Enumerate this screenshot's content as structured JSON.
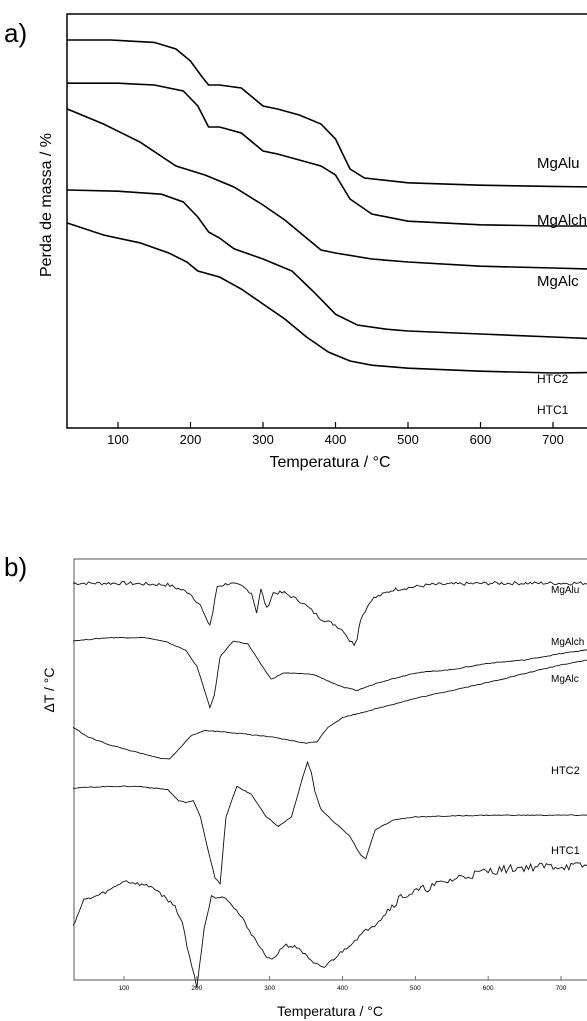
{
  "panel_a": {
    "label": "a)"
  },
  "panel_b": {
    "label": "b)"
  },
  "chart_data": [
    {
      "type": "line",
      "xlabel": "Temperatura / °C",
      "ylabel": "Perda de massa / %",
      "xlim": [
        30,
        760
      ],
      "xticks": [
        "100",
        "200",
        "300",
        "400",
        "500",
        "600",
        "700"
      ],
      "grid": false,
      "series": [
        {
          "name": "MgAlu",
          "x": [
            30,
            90,
            150,
            180,
            200,
            215,
            225,
            240,
            270,
            290,
            300,
            320,
            350,
            380,
            400,
            420,
            440,
            500,
            600,
            700,
            760
          ],
          "y": [
            95,
            95,
            94.6,
            93.5,
            91.5,
            89,
            87.5,
            87.5,
            87,
            85,
            84,
            83.5,
            82.5,
            81,
            78.5,
            73.5,
            72,
            71.2,
            70.8,
            70.6,
            70.5
          ]
        },
        {
          "name": "MgAlch",
          "x": [
            30,
            100,
            150,
            190,
            210,
            225,
            240,
            270,
            290,
            300,
            320,
            350,
            380,
            400,
            420,
            450,
            500,
            600,
            700,
            760
          ],
          "y": [
            87.8,
            87.8,
            87.5,
            86.5,
            84,
            80.5,
            80.5,
            79.5,
            77.5,
            76.5,
            76,
            75,
            74,
            72.5,
            68.5,
            66,
            64.8,
            64.2,
            64,
            64
          ]
        },
        {
          "name": "MgAlc",
          "x": [
            30,
            80,
            130,
            180,
            220,
            260,
            300,
            330,
            360,
            380,
            400,
            450,
            500,
            600,
            700,
            760
          ],
          "y": [
            83.5,
            81,
            78,
            74,
            72.5,
            70.5,
            67.5,
            65,
            62,
            60,
            59.5,
            58.5,
            58,
            57.3,
            57,
            56.8
          ]
        },
        {
          "name": "HTC2",
          "x": [
            30,
            100,
            160,
            190,
            210,
            225,
            240,
            260,
            300,
            340,
            370,
            400,
            430,
            470,
            500,
            600,
            700,
            760
          ],
          "y": [
            70,
            69.8,
            69.3,
            68,
            65.5,
            63,
            62,
            60.2,
            58.5,
            56.5,
            53,
            49.3,
            47.5,
            46.8,
            46.5,
            46,
            45.5,
            45.2
          ]
        },
        {
          "name": "HTC1",
          "x": [
            30,
            80,
            130,
            170,
            195,
            210,
            240,
            270,
            300,
            330,
            360,
            390,
            420,
            450,
            500,
            600,
            700,
            760
          ],
          "y": [
            64.5,
            62.5,
            61.2,
            59.5,
            58,
            56.5,
            55.5,
            53.5,
            51,
            48.5,
            45.5,
            43,
            41.5,
            40.8,
            40.3,
            39.8,
            39.5,
            39.6
          ]
        }
      ]
    },
    {
      "type": "line",
      "xlabel": "Temperatura / °C",
      "ylabel": "ΔT / °C",
      "xlim": [
        30,
        760
      ],
      "xticks": [
        "100",
        "200",
        "300",
        "400",
        "500",
        "600",
        "700"
      ],
      "grid": false,
      "series": [
        {
          "name": "MgAlu",
          "x": [
            30,
            100,
            160,
            190,
            205,
            212,
            218,
            222,
            228,
            245,
            262,
            275,
            282,
            288,
            296,
            305,
            320,
            345,
            370,
            390,
            402,
            410,
            416,
            420,
            425,
            440,
            470,
            520,
            600,
            700,
            760
          ],
          "y": [
            99,
            99,
            98.5,
            96,
            92,
            88,
            86,
            90,
            98,
            99,
            98,
            96,
            90,
            97,
            91,
            96,
            96,
            93,
            88,
            86,
            84,
            81,
            80,
            82,
            88,
            94,
            97,
            98.5,
            99,
            99,
            99
          ]
        },
        {
          "name": "MgAlch",
          "x": [
            30,
            80,
            130,
            160,
            185,
            200,
            210,
            218,
            224,
            232,
            250,
            270,
            290,
            302,
            320,
            360,
            400,
            420,
            450,
            500,
            550,
            600,
            650,
            700,
            760
          ],
          "y": [
            81,
            82,
            82,
            80.5,
            78,
            73,
            66,
            60,
            64,
            76,
            81,
            80,
            73,
            69,
            71,
            70.5,
            66.5,
            65.5,
            68,
            71,
            72,
            74,
            75,
            77,
            79
          ]
        },
        {
          "name": "MgAlc",
          "x": [
            30,
            50,
            80,
            120,
            145,
            162,
            175,
            190,
            210,
            240,
            300,
            350,
            365,
            380,
            400,
            450,
            500,
            600,
            700,
            760
          ],
          "y": [
            54,
            51,
            48.5,
            46,
            44.5,
            44,
            47,
            51,
            53,
            52.5,
            51,
            49,
            49.5,
            54,
            57,
            60,
            63,
            68,
            73.5,
            76
          ]
        },
        {
          "name": "HTC2",
          "x": [
            30,
            80,
            120,
            160,
            175,
            185,
            195,
            205,
            215,
            225,
            232,
            240,
            255,
            275,
            295,
            312,
            330,
            345,
            352,
            357,
            362,
            370,
            390,
            410,
            425,
            432,
            445,
            470,
            500,
            600,
            700,
            760
          ],
          "y": [
            35,
            35.5,
            35.5,
            34.5,
            31,
            30.5,
            31,
            26,
            16,
            7,
            5,
            26,
            35.5,
            33,
            26,
            23,
            26,
            38,
            43,
            40,
            34,
            28.5,
            24,
            20,
            14,
            13,
            22,
            25,
            26,
            26.5,
            26.5,
            26.5
          ]
        },
        {
          "name": "HTC1",
          "x": [
            30,
            45,
            60,
            80,
            100,
            140,
            170,
            180,
            190,
            200,
            210,
            220,
            240,
            260,
            290,
            303,
            320,
            340,
            360,
            375,
            385,
            400,
            420,
            450,
            480,
            520,
            560,
            600,
            640,
            680,
            720,
            760
          ],
          "y": [
            -8,
            0,
            1,
            3,
            6,
            4,
            -2,
            -7,
            -18,
            -27,
            -9,
            1,
            1,
            -5,
            -16,
            -19,
            -14,
            -15,
            -20,
            -21,
            -19,
            -16,
            -12,
            -6,
            1,
            4,
            7,
            9,
            10,
            10.5,
            10.5,
            11
          ]
        }
      ],
      "annotations": [
        "MgAlu",
        "MgAlch",
        "MgAlc",
        "HTC2",
        "HTC1"
      ]
    }
  ]
}
